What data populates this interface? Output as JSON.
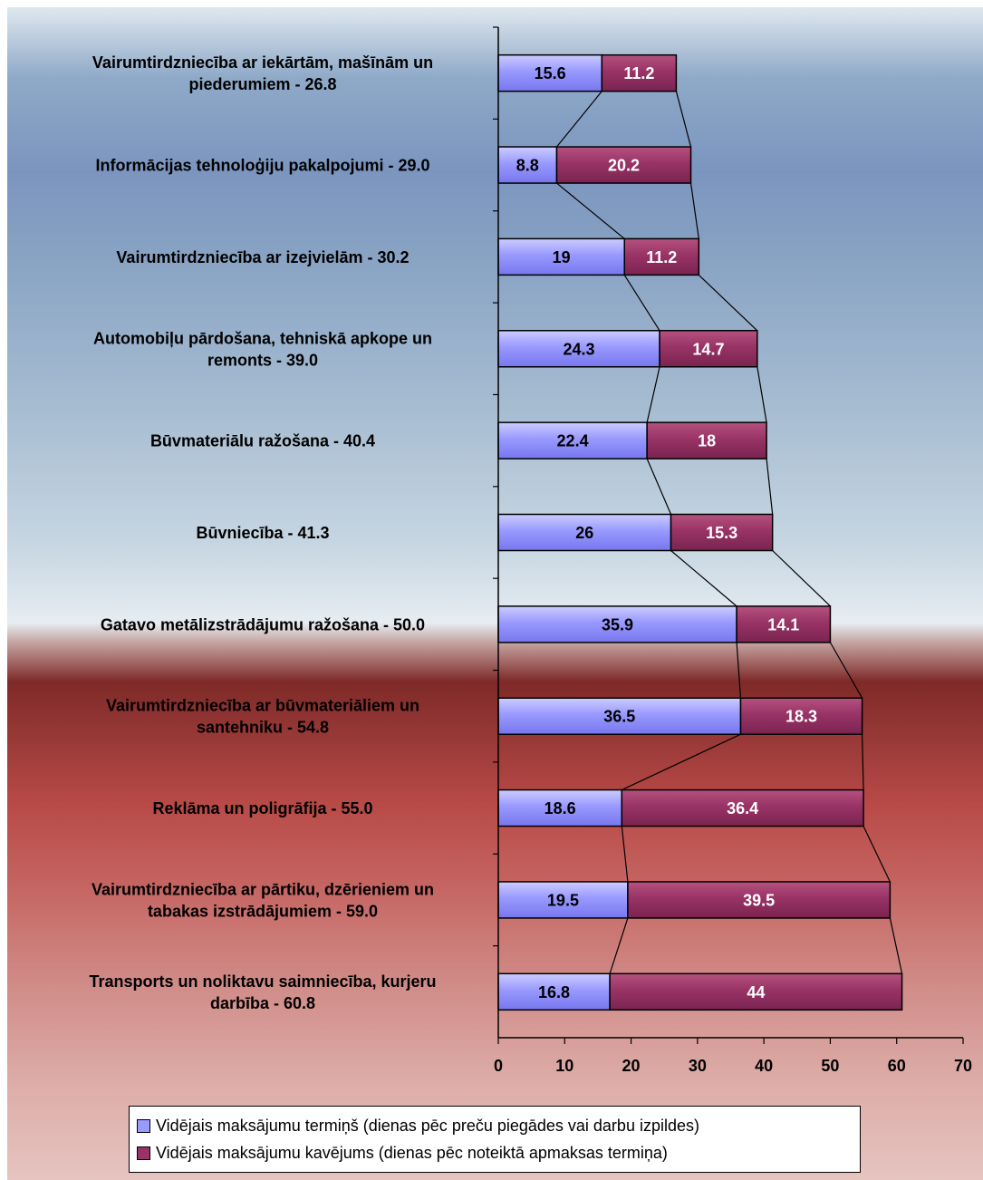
{
  "chart_data": {
    "type": "bar",
    "orientation": "horizontal",
    "stacked": true,
    "categories": [
      "Vairumtirdzniecība ar iekārtām, mašīnām un piederumiem - 26.8",
      "Informācijas tehnoloģiju pakalpojumi - 29.0",
      "Vairumtirdzniecība ar izejvielām - 30.2",
      "Automobiļu pārdošana, tehniskā apkope un remonts - 39.0",
      "Būvmateriālu ražošana - 40.4",
      "Būvniecība - 41.3",
      "Gatavo metālizstrādājumu ražošana - 50.0",
      "Vairumtirdzniecība ar būvmateriāliem un santehniku - 54.8",
      "Reklāma un poligrāfija - 55.0",
      "Vairumtirdzniecība ar pārtiku, dzērieniem un tabakas izstrādājumiem - 59.0",
      "Transports un noliktavu saimniecība, kurjeru darbība - 60.8"
    ],
    "category_lines": [
      [
        "Vairumtirdzniecība ar iekārtām, mašīnām un",
        "piederumiem - 26.8"
      ],
      [
        "Informācijas tehnoloģiju pakalpojumi - 29.0"
      ],
      [
        "Vairumtirdzniecība ar izejvielām - 30.2"
      ],
      [
        "Automobiļu pārdošana, tehniskā apkope un",
        "remonts - 39.0"
      ],
      [
        "Būvmateriālu ražošana - 40.4"
      ],
      [
        "Būvniecība - 41.3"
      ],
      [
        "Gatavo metālizstrādājumu ražošana - 50.0"
      ],
      [
        "Vairumtirdzniecība ar būvmateriāliem un",
        "santehniku - 54.8"
      ],
      [
        "Reklāma un poligrāfija - 55.0"
      ],
      [
        "Vairumtirdzniecība ar pārtiku, dzērieniem un",
        "tabakas izstrādājumiem - 59.0"
      ],
      [
        "Transports un noliktavu saimniecība, kurjeru",
        "darbība - 60.8"
      ]
    ],
    "series": [
      {
        "name": "Vidējais maksājumu termiņš (dienas pēc preču piegādes vai darbu izpildes)",
        "color": "#9999ff",
        "values": [
          15.6,
          8.8,
          19,
          24.3,
          22.4,
          26,
          35.9,
          36.5,
          18.6,
          19.5,
          16.8
        ],
        "labels": [
          "15.6",
          "8.8",
          "19",
          "24.3",
          "22.4",
          "26",
          "35.9",
          "36.5",
          "18.6",
          "19.5",
          "16.8"
        ]
      },
      {
        "name": "Vidējais maksājumu kavējums (dienas pēc noteiktā apmaksas termiņa)",
        "color": "#993366",
        "values": [
          11.2,
          20.2,
          11.2,
          14.7,
          18,
          15.3,
          14.1,
          18.3,
          36.4,
          39.5,
          44
        ],
        "labels": [
          "11.2",
          "20.2",
          "11.2",
          "14.7",
          "18",
          "15.3",
          "14.1",
          "18.3",
          "36.4",
          "39.5",
          "44"
        ]
      }
    ],
    "xlim": [
      0,
      70
    ],
    "x_ticks": [
      "0",
      "10",
      "20",
      "30",
      "40",
      "50",
      "60",
      "70"
    ],
    "series_lines": true,
    "legend_position": "bottom"
  }
}
